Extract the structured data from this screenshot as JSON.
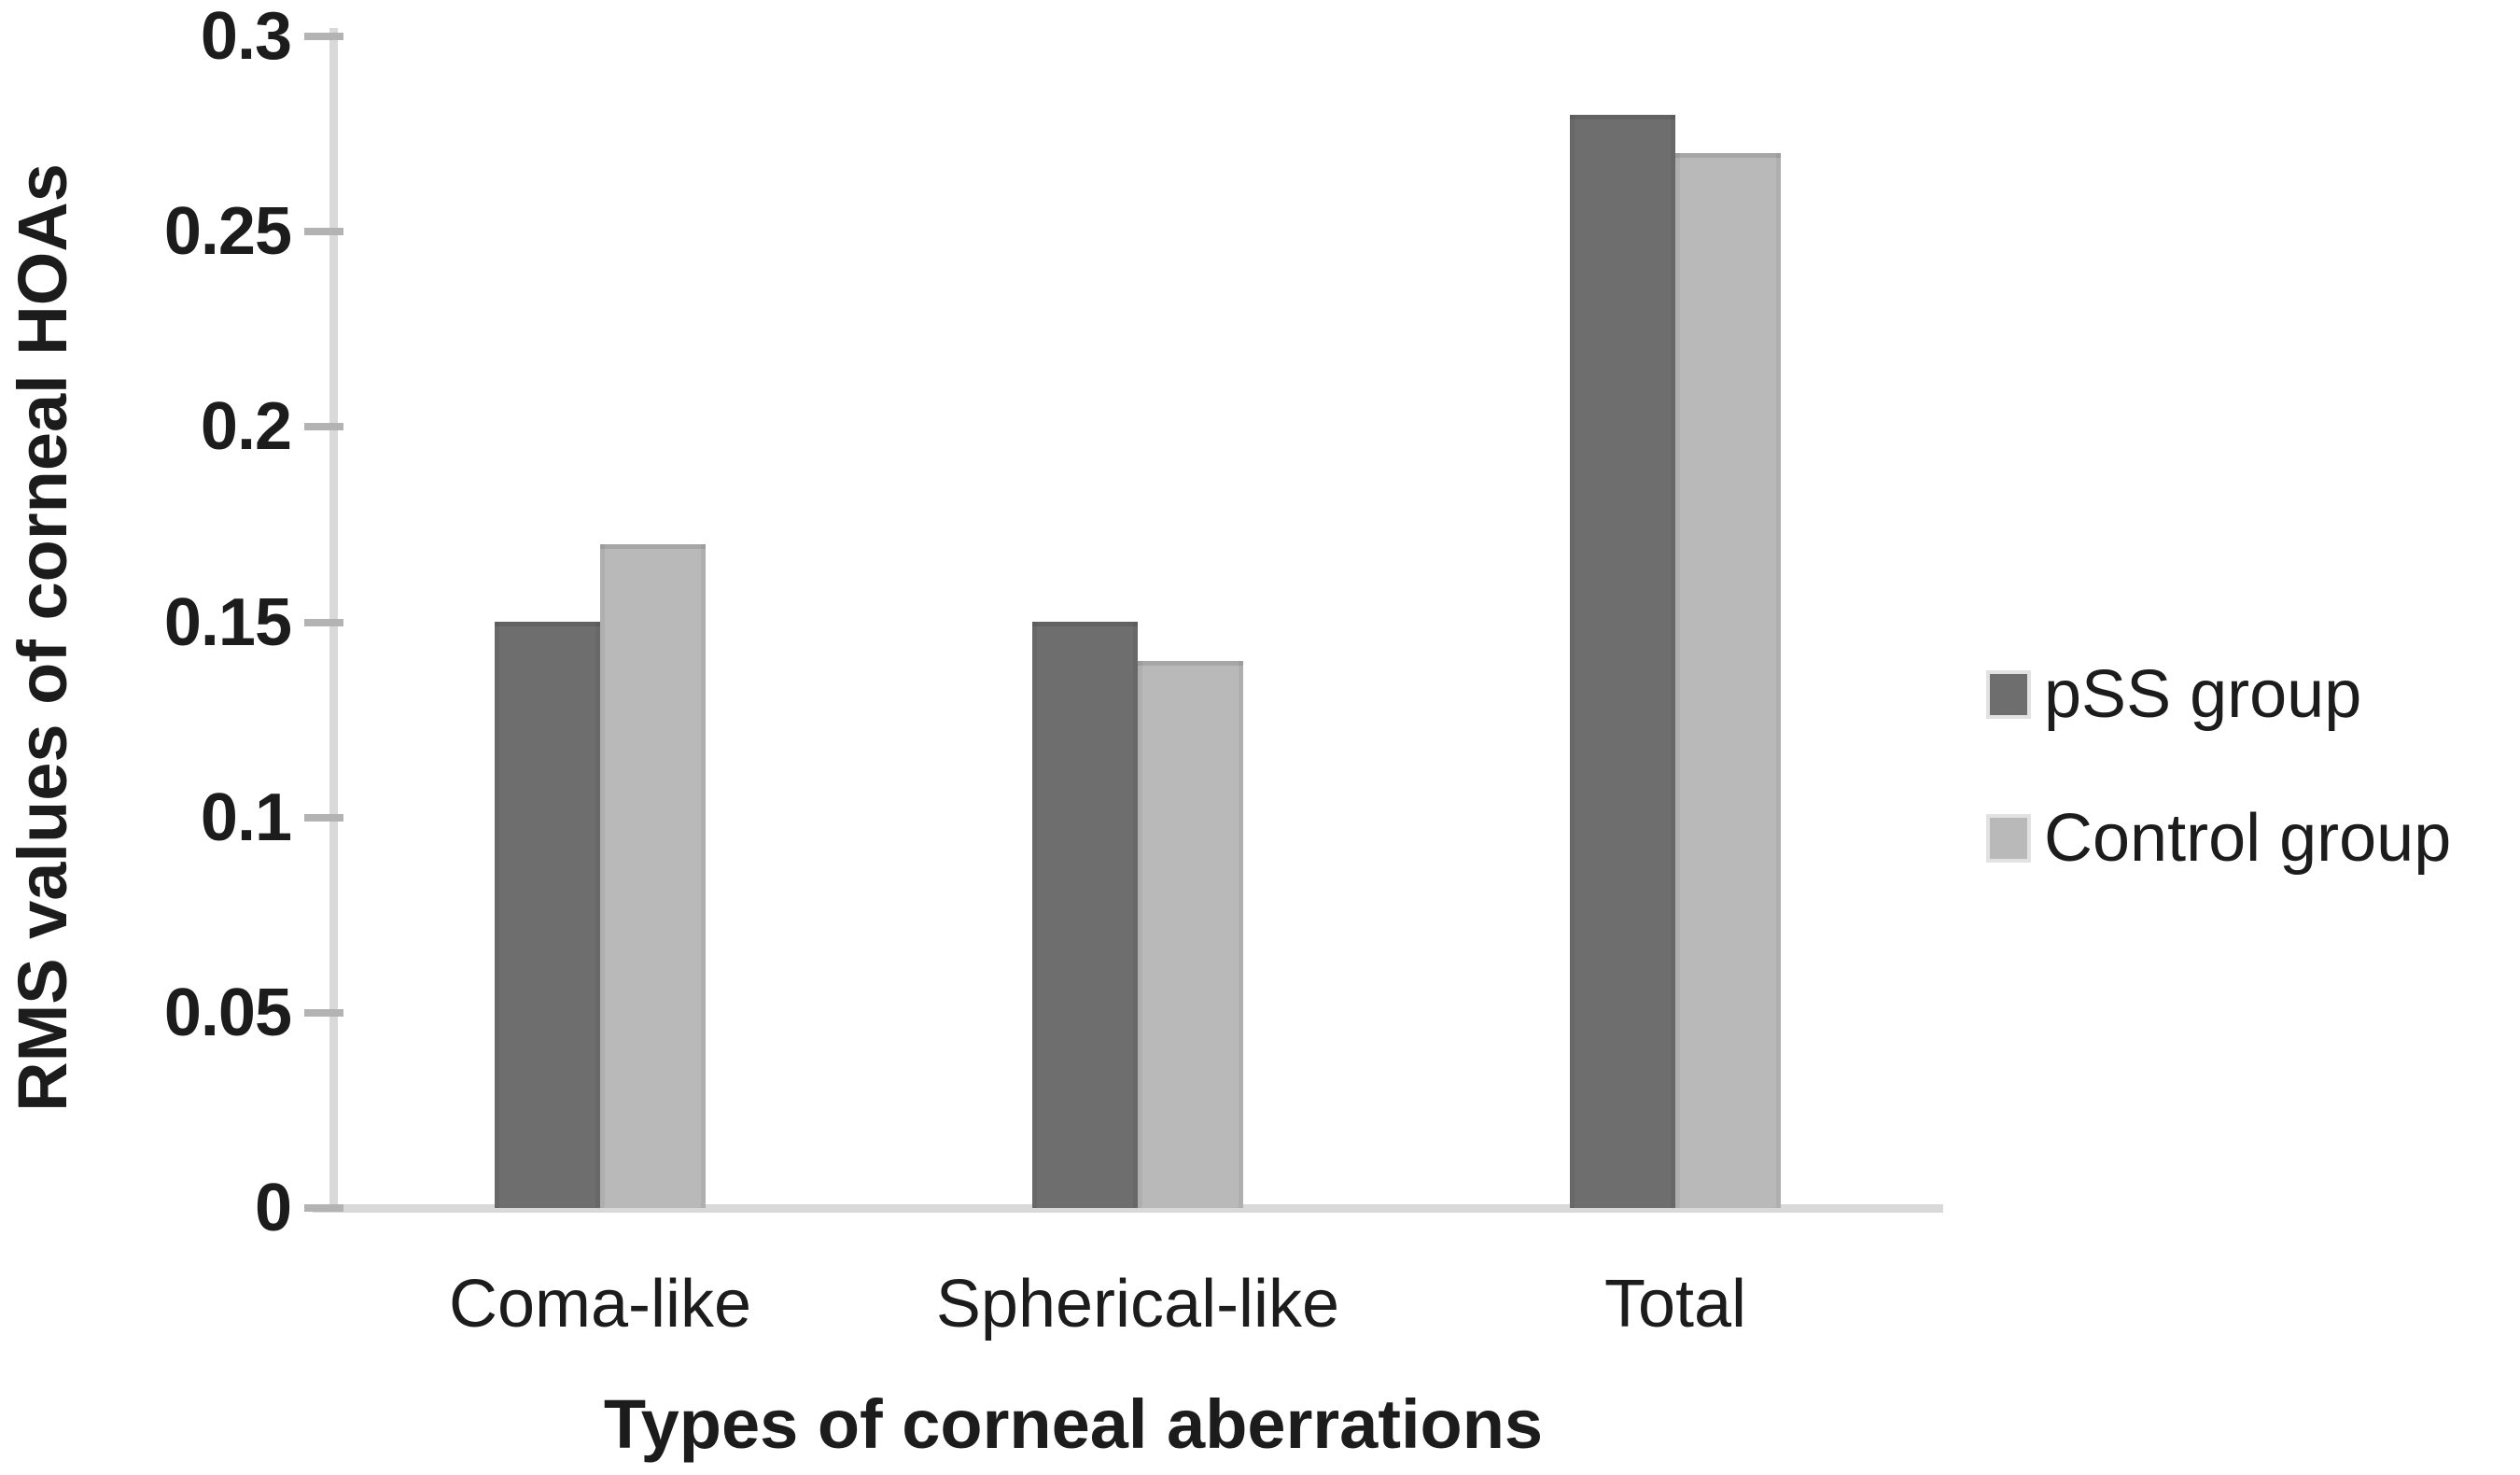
{
  "chart_data": {
    "type": "bar",
    "title": "",
    "categories": [
      "Coma-like",
      "Spherical-like",
      "Total"
    ],
    "series": [
      {
        "name": "pSS group",
        "color": "#6e6e6e",
        "values": [
          0.15,
          0.15,
          0.28
        ]
      },
      {
        "name": "Control group",
        "color": "#b9b9b9",
        "values": [
          0.17,
          0.14,
          0.27
        ]
      }
    ],
    "xlabel": "Types of corneal aberrations",
    "ylabel": "RMS values of corneal HOAs",
    "ylim": [
      0,
      0.3
    ],
    "ytick_step": 0.05,
    "yticks": [
      "0",
      "0.05",
      "0.1",
      "0.15",
      "0.2",
      "0.25",
      "0.3"
    ],
    "grid": false,
    "legend_position": "right"
  },
  "colors": {
    "axis_line": "#d9d9d9",
    "tick_mark": "#b3b3b3",
    "text": "#1c1c1c",
    "background": "#ffffff"
  }
}
